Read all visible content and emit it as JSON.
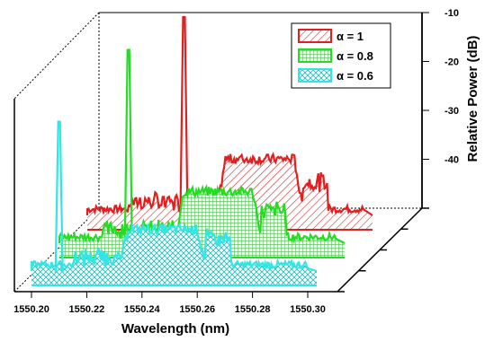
{
  "chart_data": {
    "type": "line",
    "xlabel": "Wavelength (nm)",
    "zlabel": "Relative Power (dB)",
    "x_ticks": [
      "1550.20",
      "1550.22",
      "1550.24",
      "1550.26",
      "1550.28",
      "1550.30"
    ],
    "z_ticks": [
      "-10",
      "-20",
      "-30",
      "-40"
    ],
    "legend_position": "top-right",
    "series": [
      {
        "name": "α = 1",
        "color": "#e02020",
        "fill": "hatched",
        "seed_peak": {
          "wavelength": 1550.235,
          "power_db": -8
        },
        "flat_band": {
          "start_wavelength": 1550.25,
          "end_wavelength": 1550.275,
          "power_db": -37
        },
        "floor_db": -50
      },
      {
        "name": "α = 0.8",
        "color": "#22dd22",
        "fill": "grid",
        "seed_peak": {
          "wavelength": 1550.225,
          "power_db": -9
        },
        "flat_band": {
          "start_wavelength": 1550.245,
          "end_wavelength": 1550.27,
          "power_db": -38
        },
        "floor_db": -50
      },
      {
        "name": "α = 0.6",
        "color": "#33e5e5",
        "fill": "crosshatch",
        "seed_peak": {
          "wavelength": 1550.21,
          "power_db": -18
        },
        "flat_band": {
          "start_wavelength": 1550.235,
          "end_wavelength": 1550.26,
          "power_db": -40
        },
        "floor_db": -50
      }
    ]
  }
}
